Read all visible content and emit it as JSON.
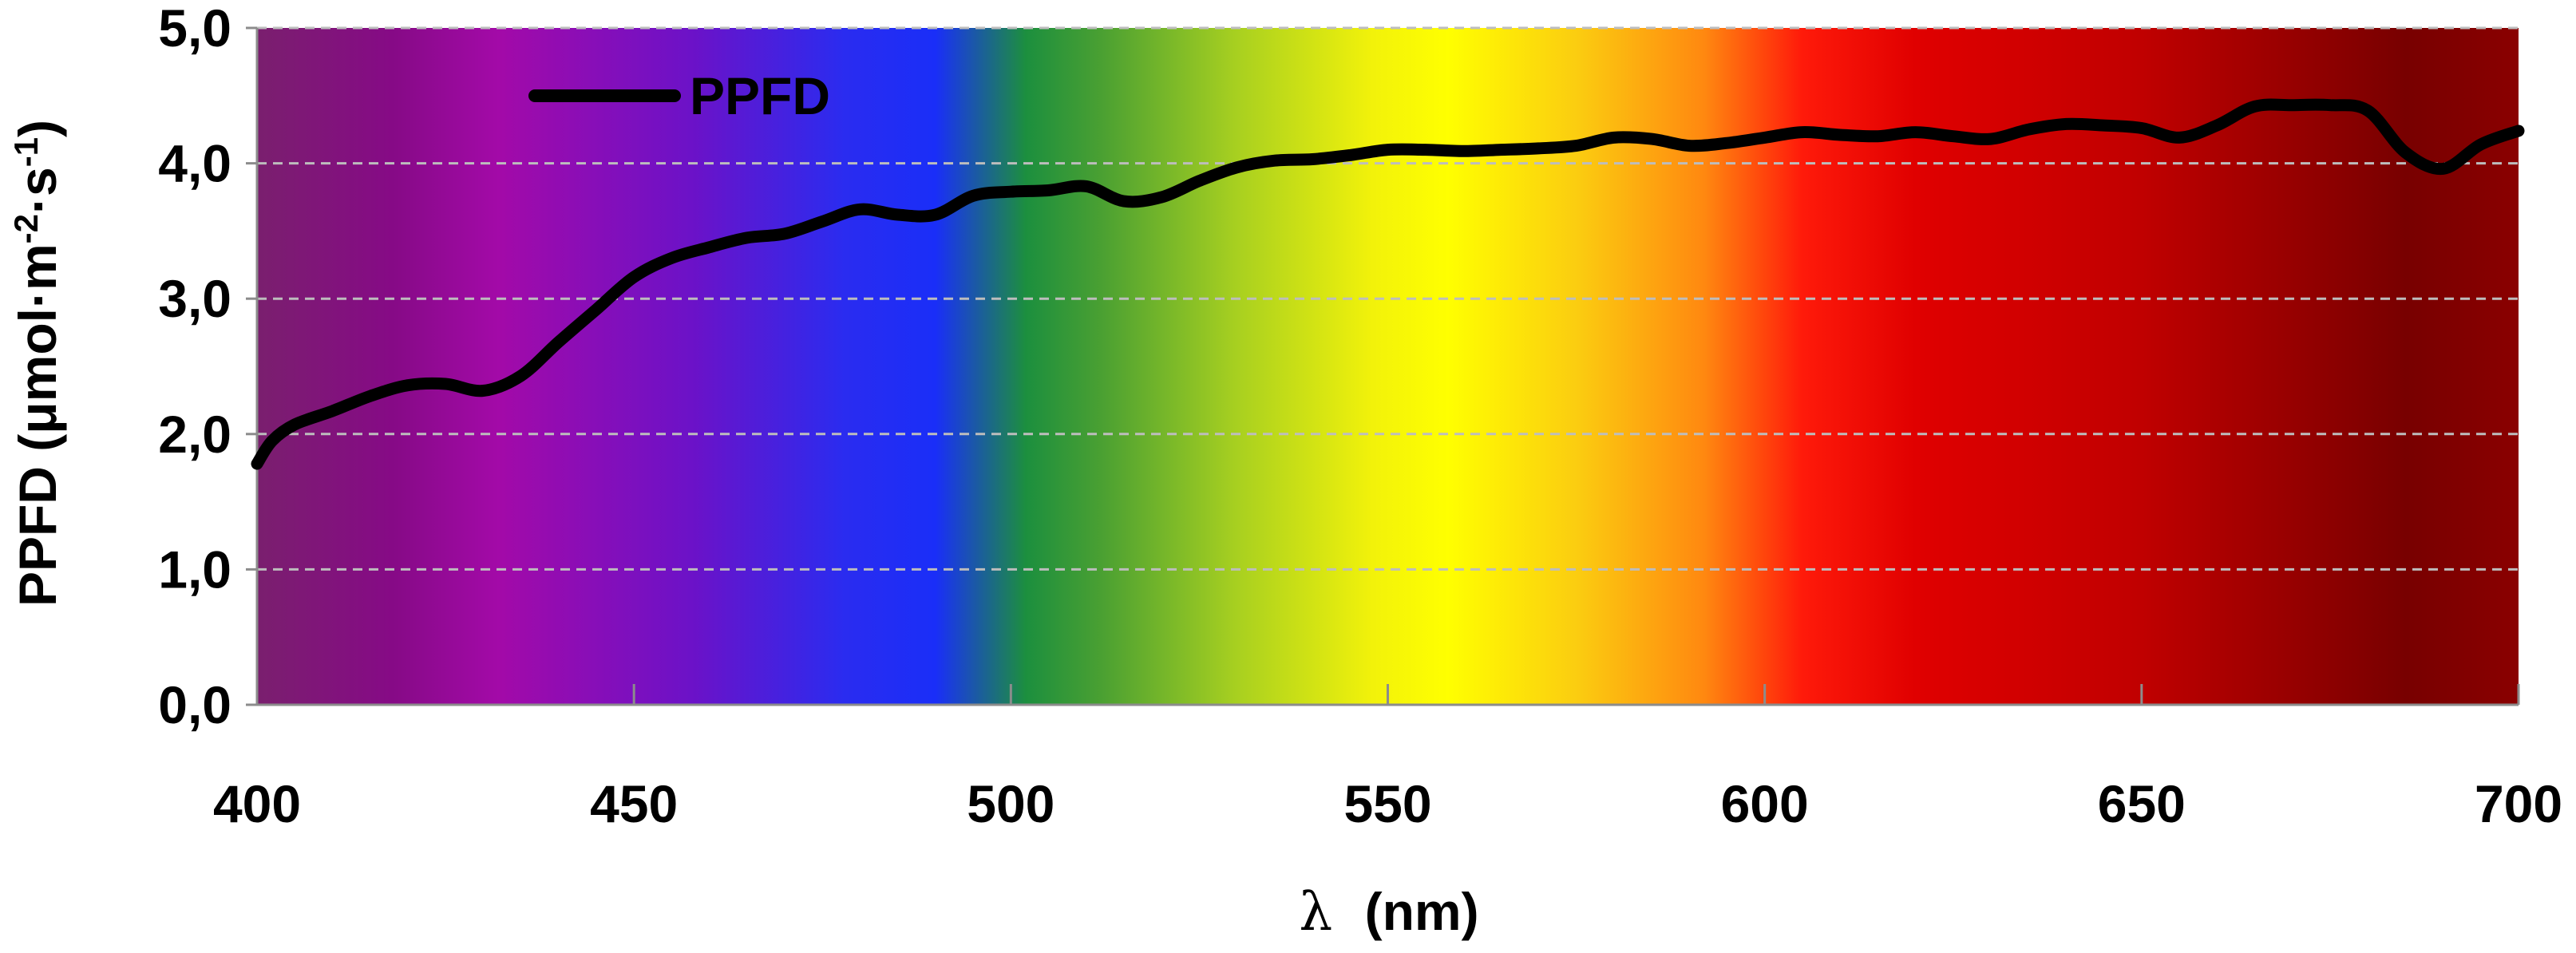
{
  "chart_data": {
    "type": "line",
    "xlabel_symbol": "λ",
    "xlabel_unit": "(nm)",
    "ylabel_prefix": "PPFD (μmol·m",
    "ylabel_exp1": "-2",
    "ylabel_mid": "·s",
    "ylabel_exp2": "-1",
    "ylabel_suffix": ")",
    "xlim": [
      400,
      700
    ],
    "ylim": [
      0,
      5
    ],
    "x_ticks": [
      400,
      450,
      500,
      550,
      600,
      650,
      700
    ],
    "x_tick_labels": [
      "400",
      "450",
      "500",
      "550",
      "600",
      "650",
      "700"
    ],
    "y_ticks": [
      0,
      1,
      2,
      3,
      4,
      5
    ],
    "y_tick_labels": [
      "0,0",
      "1,0",
      "2,0",
      "3,0",
      "4,0",
      "5,0"
    ],
    "grid": "horizontal dashed",
    "legend_position": "top-left",
    "background": "visible spectrum gradient",
    "spectrum_stops": [
      {
        "nm": 400,
        "color": "#7a1f6e"
      },
      {
        "nm": 418,
        "color": "#860a86"
      },
      {
        "nm": 432,
        "color": "#a30aa8"
      },
      {
        "nm": 458,
        "color": "#6b12c8"
      },
      {
        "nm": 478,
        "color": "#2a2cf0"
      },
      {
        "nm": 490,
        "color": "#1a2ef8"
      },
      {
        "nm": 502,
        "color": "#1c8f3e"
      },
      {
        "nm": 512,
        "color": "#4aa032"
      },
      {
        "nm": 530,
        "color": "#a8d020"
      },
      {
        "nm": 548,
        "color": "#f2f20a"
      },
      {
        "nm": 558,
        "color": "#ffff00"
      },
      {
        "nm": 575,
        "color": "#fbcd10"
      },
      {
        "nm": 592,
        "color": "#ff8810"
      },
      {
        "nm": 605,
        "color": "#ff1a0a"
      },
      {
        "nm": 620,
        "color": "#e00000"
      },
      {
        "nm": 650,
        "color": "#c00000"
      },
      {
        "nm": 685,
        "color": "#780000"
      },
      {
        "nm": 700,
        "color": "#8a0000"
      }
    ],
    "series": [
      {
        "name": "PPFD",
        "color": "#000000",
        "x": [
          400,
          402,
          405,
          410,
          415,
          420,
          425,
          430,
          435,
          440,
          445,
          450,
          455,
          460,
          465,
          470,
          475,
          480,
          485,
          490,
          495,
          500,
          505,
          510,
          515,
          520,
          525,
          530,
          535,
          540,
          545,
          550,
          555,
          560,
          565,
          570,
          575,
          580,
          585,
          590,
          595,
          600,
          605,
          610,
          615,
          620,
          625,
          630,
          635,
          640,
          645,
          650,
          655,
          660,
          665,
          670,
          675,
          680,
          685,
          690,
          695,
          700
        ],
        "y": [
          1.78,
          1.95,
          2.07,
          2.17,
          2.28,
          2.36,
          2.37,
          2.32,
          2.43,
          2.68,
          2.92,
          3.16,
          3.3,
          3.38,
          3.45,
          3.48,
          3.57,
          3.66,
          3.62,
          3.62,
          3.76,
          3.79,
          3.8,
          3.83,
          3.72,
          3.75,
          3.87,
          3.97,
          4.02,
          4.03,
          4.06,
          4.1,
          4.1,
          4.09,
          4.1,
          4.11,
          4.13,
          4.19,
          4.18,
          4.13,
          4.15,
          4.19,
          4.23,
          4.21,
          4.2,
          4.23,
          4.2,
          4.18,
          4.25,
          4.29,
          4.28,
          4.26,
          4.19,
          4.28,
          4.42,
          4.43,
          4.43,
          4.39,
          4.08,
          3.96,
          4.14,
          4.24
        ]
      }
    ]
  }
}
